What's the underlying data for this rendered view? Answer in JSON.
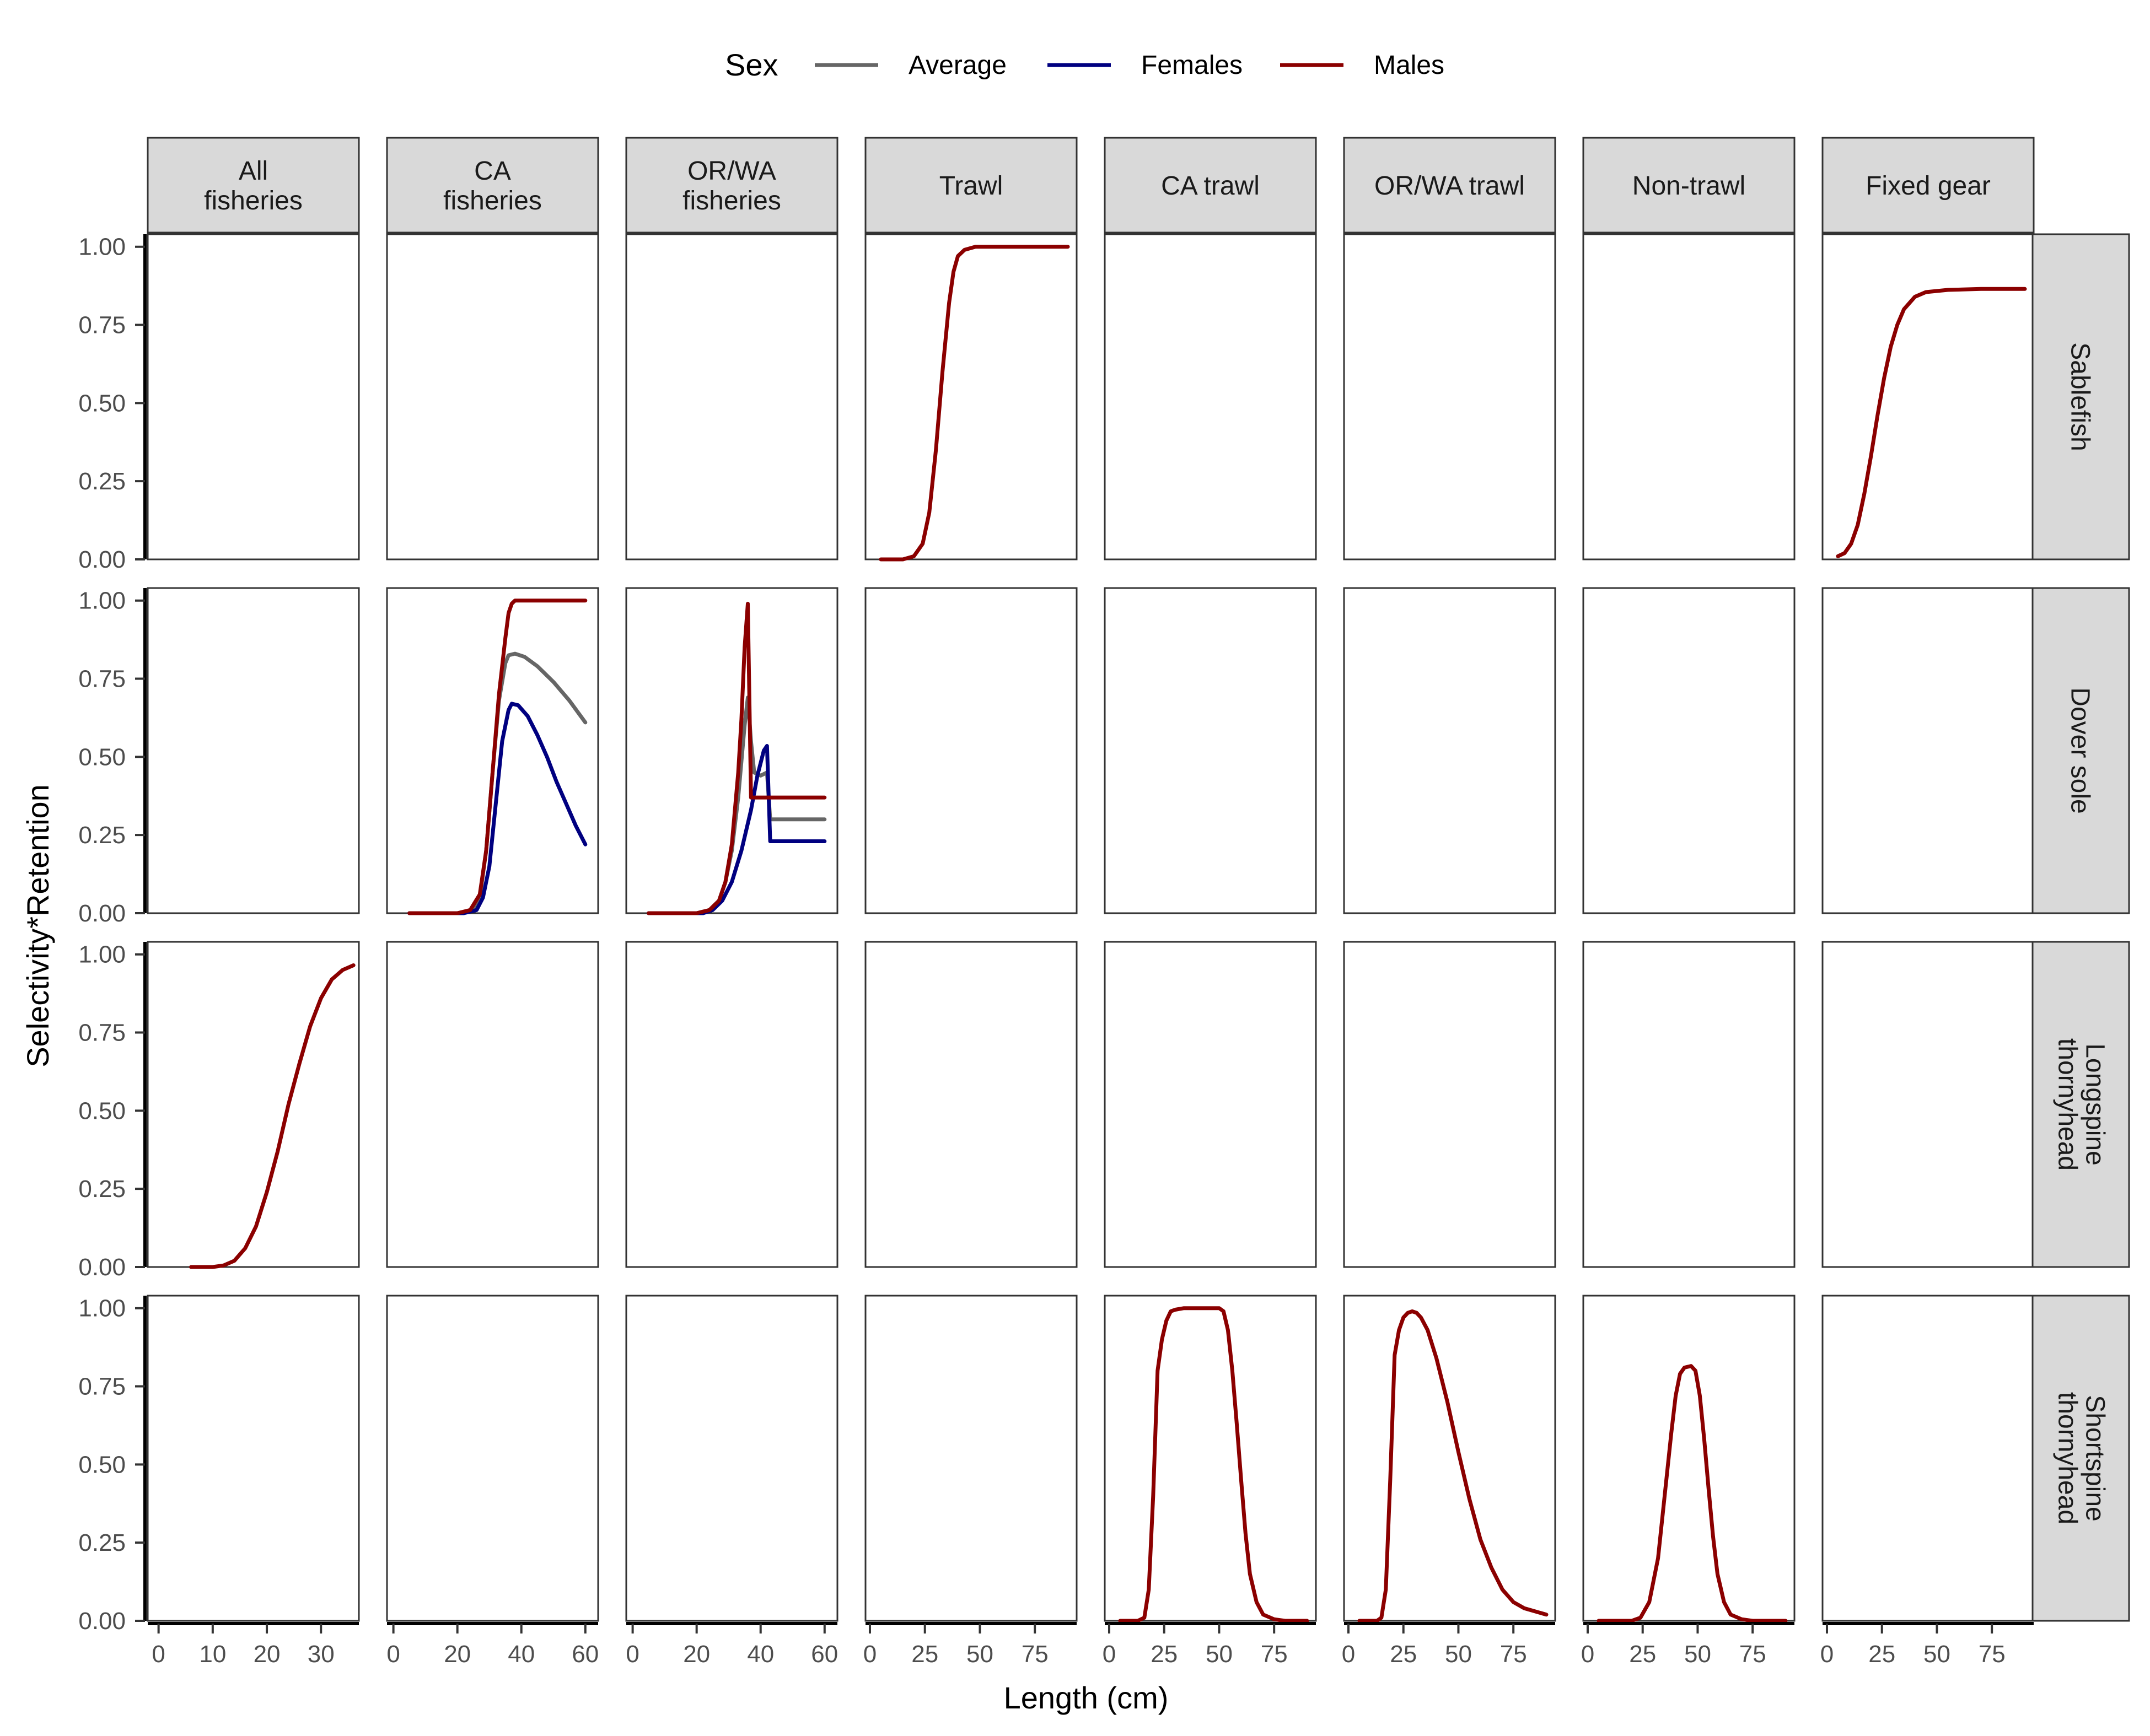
{
  "chart_data": {
    "type": "line",
    "xlabel": "Length (cm)",
    "ylabel": "Selectivity*Retention",
    "ylim": [
      0,
      1.04
    ],
    "y_ticks": [
      "0.00",
      "0.25",
      "0.50",
      "0.75",
      "1.00"
    ],
    "y_tick_values": [
      0,
      0.25,
      0.5,
      0.75,
      1.0
    ],
    "legend": {
      "title": "Sex",
      "placement": "top",
      "entries": [
        {
          "name": "Average",
          "color": "#666666"
        },
        {
          "name": "Females",
          "color": "#000080"
        },
        {
          "name": "Males",
          "color": "#8B0000"
        }
      ]
    },
    "columns": [
      {
        "label": "All\nfisheries",
        "xlim": [
          -2,
          37
        ],
        "x_ticks": [
          0,
          10,
          20,
          30
        ]
      },
      {
        "label": "CA\nfisheries",
        "xlim": [
          -2,
          64
        ],
        "x_ticks": [
          0,
          20,
          40,
          60
        ]
      },
      {
        "label": "OR/WA\nfisheries",
        "xlim": [
          -2,
          64
        ],
        "x_ticks": [
          0,
          20,
          40,
          60
        ]
      },
      {
        "label": "Trawl",
        "xlim": [
          -2,
          94
        ],
        "x_ticks": [
          0,
          25,
          50,
          75
        ]
      },
      {
        "label": "CA trawl",
        "xlim": [
          -2,
          94
        ],
        "x_ticks": [
          0,
          25,
          50,
          75
        ]
      },
      {
        "label": "OR/WA trawl",
        "xlim": [
          -2,
          94
        ],
        "x_ticks": [
          0,
          25,
          50,
          75
        ]
      },
      {
        "label": "Non-trawl",
        "xlim": [
          -2,
          94
        ],
        "x_ticks": [
          0,
          25,
          50,
          75
        ]
      },
      {
        "label": "Fixed gear",
        "xlim": [
          -2,
          94
        ],
        "x_ticks": [
          0,
          25,
          50,
          75
        ]
      }
    ],
    "rows": [
      {
        "label": "Sablefish"
      },
      {
        "label": "Dover sole"
      },
      {
        "label": "Longspine\nthornyhead"
      },
      {
        "label": "Shortspine\nthornyhead"
      }
    ],
    "panels": [
      {
        "row": 0,
        "col": 3,
        "series": [
          {
            "name": "Males",
            "color": "#8B0000",
            "points": [
              [
                5,
                0
              ],
              [
                15,
                0
              ],
              [
                20,
                0.01
              ],
              [
                24,
                0.05
              ],
              [
                27,
                0.15
              ],
              [
                30,
                0.35
              ],
              [
                33,
                0.6
              ],
              [
                36,
                0.82
              ],
              [
                38,
                0.92
              ],
              [
                40,
                0.97
              ],
              [
                43,
                0.99
              ],
              [
                48,
                1.0
              ],
              [
                90,
                1.0
              ]
            ]
          }
        ]
      },
      {
        "row": 0,
        "col": 7,
        "series": [
          {
            "name": "Males",
            "color": "#8B0000",
            "points": [
              [
                5,
                0.01
              ],
              [
                8,
                0.02
              ],
              [
                11,
                0.05
              ],
              [
                14,
                0.11
              ],
              [
                17,
                0.21
              ],
              [
                20,
                0.33
              ],
              [
                23,
                0.46
              ],
              [
                26,
                0.58
              ],
              [
                29,
                0.68
              ],
              [
                32,
                0.75
              ],
              [
                35,
                0.8
              ],
              [
                40,
                0.84
              ],
              [
                45,
                0.855
              ],
              [
                55,
                0.862
              ],
              [
                70,
                0.865
              ],
              [
                90,
                0.865
              ]
            ]
          }
        ]
      },
      {
        "row": 1,
        "col": 1,
        "series": [
          {
            "name": "Average",
            "color": "#666666",
            "points": [
              [
                5,
                0
              ],
              [
                20,
                0
              ],
              [
                25,
                0.01
              ],
              [
                27,
                0.05
              ],
              [
                29,
                0.2
              ],
              [
                31,
                0.45
              ],
              [
                33,
                0.68
              ],
              [
                35,
                0.8
              ],
              [
                36,
                0.825
              ],
              [
                38,
                0.83
              ],
              [
                41,
                0.82
              ],
              [
                45,
                0.79
              ],
              [
                50,
                0.74
              ],
              [
                55,
                0.68
              ],
              [
                60,
                0.61
              ]
            ]
          },
          {
            "name": "Females",
            "color": "#000080",
            "points": [
              [
                5,
                0
              ],
              [
                22,
                0
              ],
              [
                26,
                0.01
              ],
              [
                28,
                0.05
              ],
              [
                30,
                0.15
              ],
              [
                32,
                0.35
              ],
              [
                34,
                0.55
              ],
              [
                36,
                0.65
              ],
              [
                37,
                0.67
              ],
              [
                39,
                0.665
              ],
              [
                42,
                0.63
              ],
              [
                45,
                0.57
              ],
              [
                48,
                0.5
              ],
              [
                51,
                0.42
              ],
              [
                54,
                0.35
              ],
              [
                57,
                0.28
              ],
              [
                60,
                0.22
              ]
            ]
          },
          {
            "name": "Males",
            "color": "#8B0000",
            "points": [
              [
                5,
                0
              ],
              [
                20,
                0
              ],
              [
                24,
                0.01
              ],
              [
                27,
                0.06
              ],
              [
                29,
                0.2
              ],
              [
                31,
                0.45
              ],
              [
                33,
                0.7
              ],
              [
                35,
                0.88
              ],
              [
                36,
                0.96
              ],
              [
                37,
                0.99
              ],
              [
                38,
                1.0
              ],
              [
                60,
                1.0
              ]
            ]
          }
        ]
      },
      {
        "row": 1,
        "col": 2,
        "series": [
          {
            "name": "Average",
            "color": "#666666",
            "points": [
              [
                5,
                0
              ],
              [
                20,
                0
              ],
              [
                24,
                0.01
              ],
              [
                27,
                0.04
              ],
              [
                29,
                0.1
              ],
              [
                31,
                0.2
              ],
              [
                33,
                0.37
              ],
              [
                35,
                0.6
              ],
              [
                36,
                0.69
              ],
              [
                37,
                0.55
              ],
              [
                38,
                0.45
              ],
              [
                40,
                0.44
              ],
              [
                42,
                0.45
              ],
              [
                43,
                0.3
              ],
              [
                60,
                0.3
              ]
            ]
          },
          {
            "name": "Females",
            "color": "#000080",
            "points": [
              [
                5,
                0
              ],
              [
                22,
                0
              ],
              [
                25,
                0.01
              ],
              [
                28,
                0.04
              ],
              [
                31,
                0.1
              ],
              [
                34,
                0.2
              ],
              [
                37,
                0.33
              ],
              [
                39,
                0.44
              ],
              [
                41,
                0.52
              ],
              [
                42,
                0.535
              ],
              [
                43,
                0.23
              ],
              [
                60,
                0.23
              ]
            ]
          },
          {
            "name": "Males",
            "color": "#8B0000",
            "points": [
              [
                5,
                0
              ],
              [
                20,
                0
              ],
              [
                24,
                0.01
              ],
              [
                27,
                0.04
              ],
              [
                29,
                0.1
              ],
              [
                31,
                0.22
              ],
              [
                33,
                0.45
              ],
              [
                34,
                0.62
              ],
              [
                35,
                0.85
              ],
              [
                36,
                0.99
              ],
              [
                37,
                0.37
              ],
              [
                60,
                0.37
              ]
            ]
          }
        ]
      },
      {
        "row": 2,
        "col": 0,
        "series": [
          {
            "name": "Males",
            "color": "#8B0000",
            "points": [
              [
                6,
                0
              ],
              [
                10,
                0
              ],
              [
                12,
                0.005
              ],
              [
                14,
                0.02
              ],
              [
                16,
                0.06
              ],
              [
                18,
                0.13
              ],
              [
                20,
                0.24
              ],
              [
                22,
                0.37
              ],
              [
                24,
                0.52
              ],
              [
                26,
                0.65
              ],
              [
                28,
                0.77
              ],
              [
                30,
                0.86
              ],
              [
                32,
                0.92
              ],
              [
                34,
                0.95
              ],
              [
                36,
                0.965
              ]
            ]
          }
        ]
      },
      {
        "row": 3,
        "col": 4,
        "series": [
          {
            "name": "Males",
            "color": "#8B0000",
            "points": [
              [
                5,
                0
              ],
              [
                13,
                0
              ],
              [
                16,
                0.01
              ],
              [
                18,
                0.1
              ],
              [
                20,
                0.4
              ],
              [
                22,
                0.8
              ],
              [
                24,
                0.9
              ],
              [
                26,
                0.96
              ],
              [
                28,
                0.99
              ],
              [
                30,
                0.995
              ],
              [
                34,
                1.0
              ],
              [
                50,
                1.0
              ],
              [
                52,
                0.99
              ],
              [
                54,
                0.93
              ],
              [
                56,
                0.8
              ],
              [
                58,
                0.63
              ],
              [
                60,
                0.45
              ],
              [
                62,
                0.28
              ],
              [
                64,
                0.15
              ],
              [
                67,
                0.06
              ],
              [
                70,
                0.02
              ],
              [
                75,
                0.005
              ],
              [
                80,
                0
              ],
              [
                90,
                0
              ]
            ]
          }
        ]
      },
      {
        "row": 3,
        "col": 5,
        "series": [
          {
            "name": "Males",
            "color": "#8B0000",
            "points": [
              [
                5,
                0
              ],
              [
                13,
                0
              ],
              [
                15,
                0.01
              ],
              [
                17,
                0.1
              ],
              [
                19,
                0.45
              ],
              [
                21,
                0.85
              ],
              [
                23,
                0.93
              ],
              [
                25,
                0.97
              ],
              [
                27,
                0.985
              ],
              [
                29,
                0.99
              ],
              [
                31,
                0.985
              ],
              [
                33,
                0.97
              ],
              [
                36,
                0.93
              ],
              [
                40,
                0.84
              ],
              [
                45,
                0.7
              ],
              [
                50,
                0.54
              ],
              [
                55,
                0.39
              ],
              [
                60,
                0.26
              ],
              [
                65,
                0.17
              ],
              [
                70,
                0.1
              ],
              [
                75,
                0.06
              ],
              [
                80,
                0.04
              ],
              [
                90,
                0.02
              ]
            ]
          }
        ]
      },
      {
        "row": 3,
        "col": 6,
        "series": [
          {
            "name": "Males",
            "color": "#8B0000",
            "points": [
              [
                5,
                0
              ],
              [
                20,
                0
              ],
              [
                24,
                0.01
              ],
              [
                28,
                0.06
              ],
              [
                32,
                0.2
              ],
              [
                35,
                0.4
              ],
              [
                38,
                0.6
              ],
              [
                40,
                0.72
              ],
              [
                42,
                0.79
              ],
              [
                44,
                0.81
              ],
              [
                47,
                0.815
              ],
              [
                49,
                0.8
              ],
              [
                51,
                0.72
              ],
              [
                53,
                0.58
              ],
              [
                55,
                0.42
              ],
              [
                57,
                0.27
              ],
              [
                59,
                0.15
              ],
              [
                62,
                0.06
              ],
              [
                65,
                0.02
              ],
              [
                70,
                0.005
              ],
              [
                75,
                0
              ],
              [
                90,
                0
              ]
            ]
          }
        ]
      }
    ]
  }
}
